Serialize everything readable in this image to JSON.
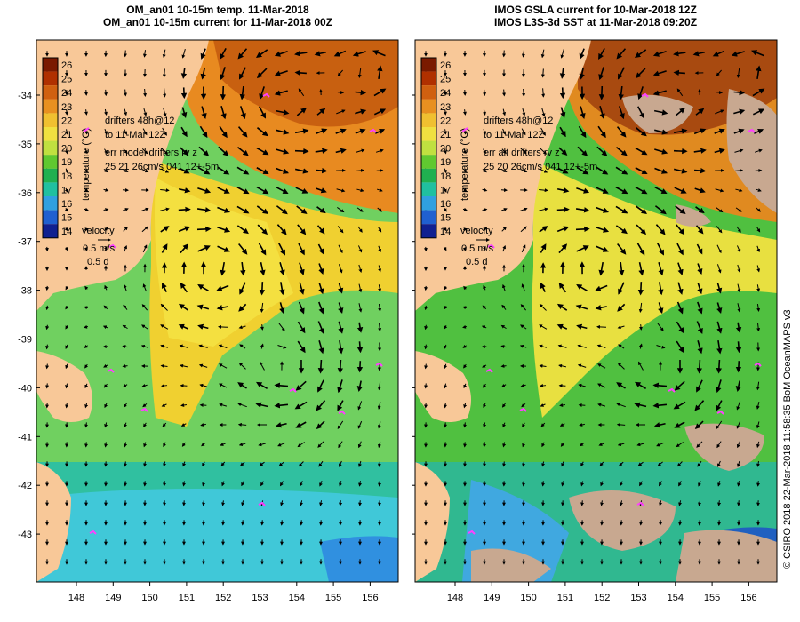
{
  "left_panel": {
    "title_line1": "OM_an01 10-15m temp. 11-Mar-2018",
    "title_line2": "OM_an01 10-15m current for 11-Mar-2018 00Z",
    "legend": {
      "drifters_line1": "drifters 48h@12",
      "drifters_line2": "to 11-Mar 12Z",
      "err_line1": "err model drifters rv z",
      "err_line2": "25 21 26cm/s 041 12+-5m"
    }
  },
  "right_panel": {
    "title_line1": "IMOS GSLA current for 10-Mar-2018 12Z",
    "title_line2": "IMOS L3S-3d SST at 11-Mar-2018 09:20Z",
    "legend": {
      "drifters_line1": "drifters 48h@12",
      "drifters_line2": "to 11-Mar 12Z",
      "err_line1": "err alt drifters rv z",
      "err_line2": "25 20 26cm/s 041 12+-5m"
    }
  },
  "colorbar": {
    "label": "temperature (°C)",
    "ticks": [
      "26",
      "25",
      "24",
      "23",
      "22",
      "21",
      "20",
      "19",
      "18",
      "17",
      "16",
      "15",
      "14"
    ],
    "colors": [
      "#7a1a00",
      "#b03000",
      "#d06010",
      "#e89020",
      "#f0c030",
      "#f0e040",
      "#c0e040",
      "#60c830",
      "#20b050",
      "#20c0a0",
      "#30a0e0",
      "#2060d0",
      "#102090"
    ]
  },
  "velocity_legend": {
    "label": "velocity",
    "speed": "0.5 m/s",
    "duration": "0.5 d"
  },
  "axes": {
    "lat_ticks": [
      "-34",
      "-35",
      "-36",
      "-37",
      "-38",
      "-39",
      "-40",
      "-41",
      "-42",
      "-43"
    ],
    "lon_ticks": [
      "148",
      "149",
      "150",
      "151",
      "152",
      "153",
      "154",
      "155",
      "156"
    ]
  },
  "credit": "© CSIRO 2018   22-Mar-2018 11:58:35 BoM OceanMAPS v3",
  "colors": {
    "land": "#f8c898",
    "missing_data": "#c8a890",
    "drifter": "#ff40ff",
    "arrow": "#000000"
  }
}
